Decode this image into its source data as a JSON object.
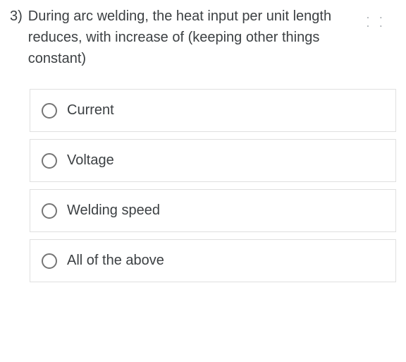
{
  "question": {
    "number": "3)",
    "text": "During arc welding, the heat input per unit length reduces, with increase of (keeping other things constant)"
  },
  "options": [
    {
      "label": "Current"
    },
    {
      "label": "Voltage"
    },
    {
      "label": "Welding speed"
    },
    {
      "label": "All of the above"
    }
  ],
  "style": {
    "background_color": "#ffffff",
    "text_color": "#3c4043",
    "border_color": "#e0e0e0",
    "radio_border_color": "#757575",
    "question_fontsize": 20,
    "option_fontsize": 20,
    "radio_size": 22,
    "option_gap": 10,
    "option_padding": 18
  }
}
